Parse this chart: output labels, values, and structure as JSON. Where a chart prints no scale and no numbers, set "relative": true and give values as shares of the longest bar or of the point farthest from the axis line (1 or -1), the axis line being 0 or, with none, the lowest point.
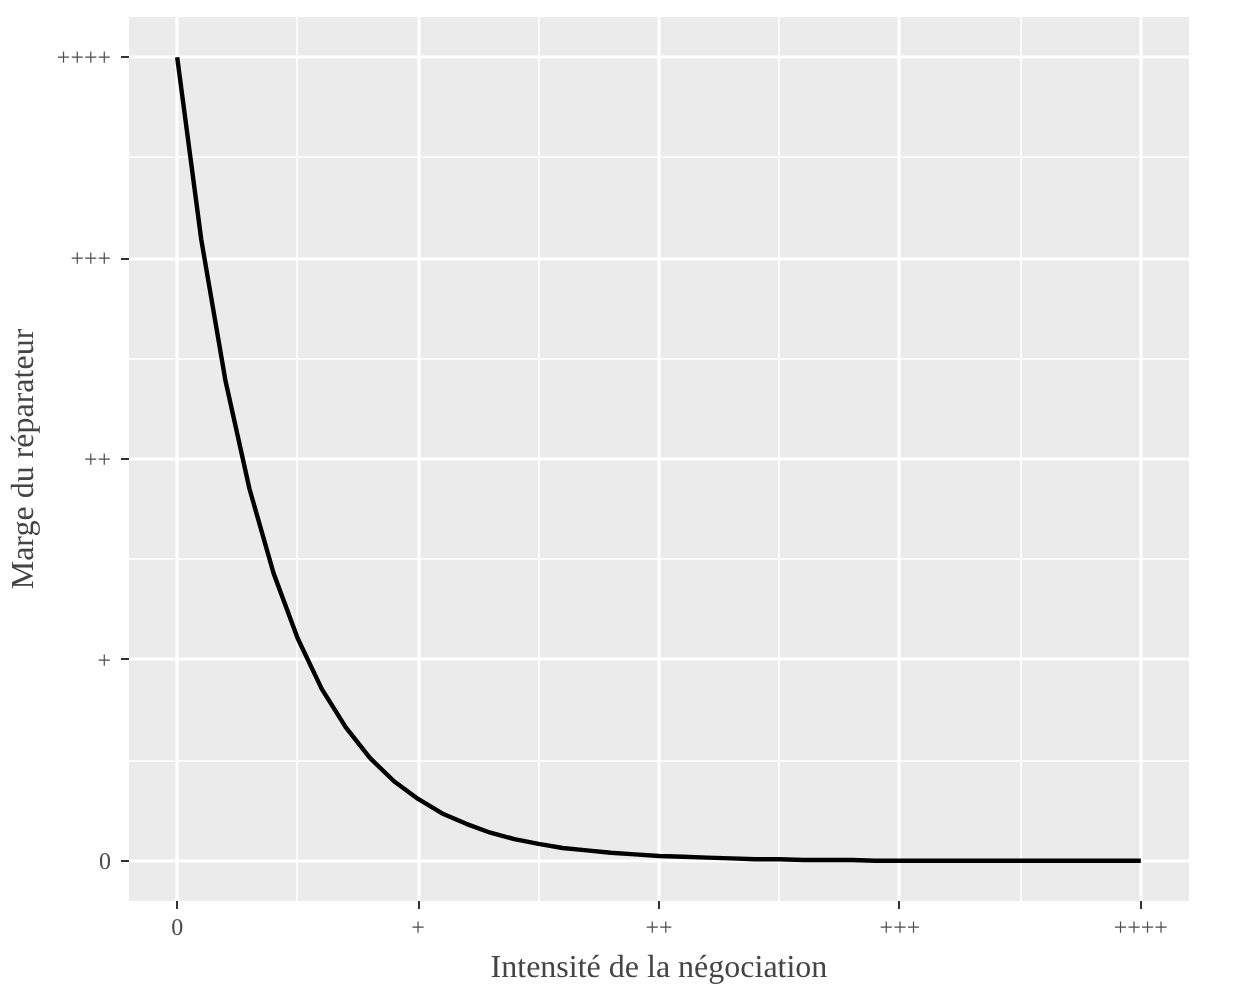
{
  "chart_data": {
    "type": "line",
    "xlabel": "Intensité de la négociation",
    "ylabel": "Marge du réparateur",
    "relative": true,
    "categories": [
      "0",
      null,
      null,
      null,
      null,
      null,
      null,
      null,
      null,
      null,
      "+",
      null,
      null,
      null,
      null,
      null,
      null,
      null,
      null,
      null,
      "++",
      null,
      null,
      null,
      null,
      null,
      null,
      null,
      null,
      null,
      "+++",
      null,
      null,
      null,
      null,
      null,
      null,
      null,
      null,
      null,
      "++++"
    ],
    "series": [
      {
        "color": "#000000",
        "values": [
          1,
          0.773,
          0.598,
          0.463,
          0.358,
          0.277,
          0.214,
          0.166,
          0.128,
          0.099,
          0.077,
          0.059,
          0.046,
          0.035,
          0.027,
          0.021,
          0.016,
          0.013,
          0.01,
          0.008,
          0.006,
          0.005,
          0.004,
          0.003,
          0.002,
          0.002,
          0.001,
          0.001,
          0.001,
          0,
          0,
          0,
          0,
          0,
          0,
          0,
          0,
          0,
          0,
          0,
          0
        ]
      }
    ],
    "annotations": [
      "0",
      "+",
      "++",
      "+++",
      "++++"
    ],
    "grid": true,
    "marker": "none",
    "line_style": "solid"
  }
}
